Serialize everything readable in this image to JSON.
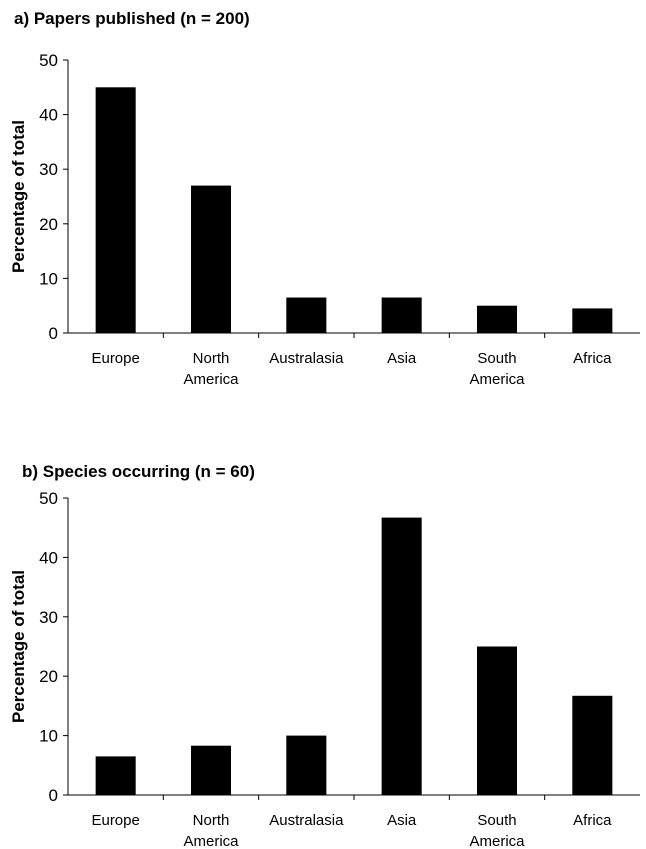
{
  "chart_data": [
    {
      "type": "bar",
      "title": "a) Papers published (n = 200)",
      "ylabel": "Percentage of total",
      "xlabel": "",
      "ylim": [
        0,
        50
      ],
      "yticks": [
        0,
        10,
        20,
        30,
        40,
        50
      ],
      "categories": [
        [
          "Europe"
        ],
        [
          "North",
          "America"
        ],
        [
          "Australasia"
        ],
        [
          "Asia"
        ],
        [
          "South",
          "America"
        ],
        [
          "Africa"
        ]
      ],
      "values": [
        45,
        27,
        6.5,
        6.5,
        5,
        4.5
      ],
      "bar_color": "#000000",
      "grid": false,
      "legend": "none"
    },
    {
      "type": "bar",
      "title": "b) Species occurring (n = 60)",
      "ylabel": "Percentage of total",
      "xlabel": "",
      "ylim": [
        0,
        50
      ],
      "yticks": [
        0,
        10,
        20,
        30,
        40,
        50
      ],
      "categories": [
        [
          "Europe"
        ],
        [
          "North",
          "America"
        ],
        [
          "Australasia"
        ],
        [
          "Asia"
        ],
        [
          "South",
          "America"
        ],
        [
          "Africa"
        ]
      ],
      "values": [
        6.5,
        8.3,
        10,
        46.7,
        25,
        16.7
      ],
      "bar_color": "#000000",
      "grid": false,
      "legend": "none"
    }
  ]
}
